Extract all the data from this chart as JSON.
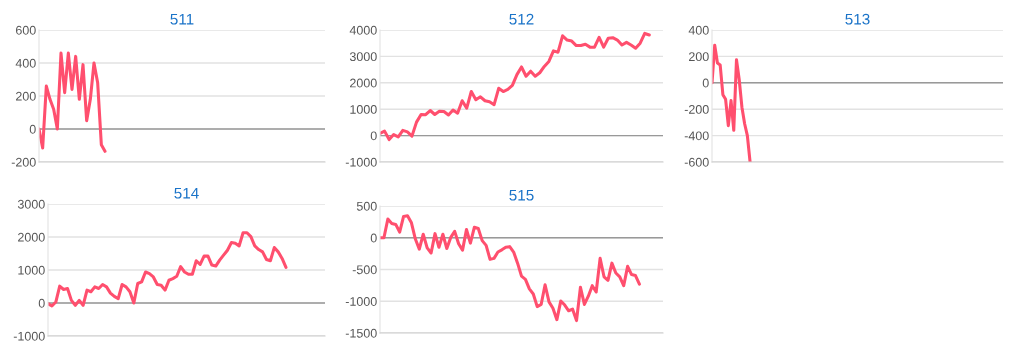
{
  "chart_data": [
    {
      "type": "line",
      "title": "511",
      "ylim": [
        -200,
        600
      ],
      "yticks": [
        -200,
        0,
        200,
        400,
        600
      ],
      "grid": "y",
      "tick_labels": "y",
      "ref_lines": [
        {
          "axis": "y",
          "value": 0,
          "color": "#999999"
        }
      ],
      "categories": [
        null,
        null,
        null,
        null,
        null,
        null,
        null,
        null,
        null,
        null,
        null,
        null,
        null,
        null,
        null,
        null,
        null,
        null,
        null,
        null,
        null,
        null,
        null,
        null,
        null,
        null,
        null,
        null,
        null,
        null,
        null,
        null,
        null,
        null,
        null,
        null,
        null,
        null,
        null,
        null,
        null,
        null,
        null,
        null,
        null,
        null,
        null,
        null,
        null,
        null,
        null,
        null,
        null,
        null,
        null,
        null,
        null,
        null,
        null,
        null,
        null,
        null,
        null,
        null,
        null,
        null,
        null,
        null,
        null,
        null,
        null,
        null,
        null,
        null,
        null,
        null,
        null,
        null,
        null
      ],
      "series": [
        {
          "color": "#ff4f6e",
          "values": [
            0,
            -115,
            260,
            180,
            120,
            0,
            460,
            220,
            460,
            240,
            440,
            180,
            390,
            50,
            180,
            400,
            280,
            -95,
            -135,
            null,
            null,
            null,
            null,
            null,
            null,
            null,
            null,
            null,
            null,
            null,
            null,
            null,
            null,
            null,
            null,
            null,
            null,
            null,
            null,
            null,
            null,
            null,
            null,
            null,
            null,
            null,
            null,
            null,
            null,
            null,
            null,
            null,
            null,
            null,
            null,
            null,
            null,
            null,
            null,
            null,
            null,
            null,
            null,
            null,
            null,
            null,
            null,
            null,
            null,
            null,
            null,
            null,
            null,
            null,
            null,
            null,
            null,
            null,
            null
          ]
        }
      ]
    },
    {
      "type": "line",
      "title": "512",
      "ylim": [
        -1000,
        4000
      ],
      "yticks": [
        -1000,
        0,
        1000,
        2000,
        3000,
        4000
      ],
      "grid": "y",
      "tick_labels": "y",
      "ref_lines": [
        {
          "axis": "y",
          "value": 0,
          "color": "#999999"
        }
      ],
      "categories": [
        null,
        null,
        null,
        null,
        null,
        null,
        null,
        null,
        null,
        null,
        null,
        null,
        null,
        null,
        null,
        null,
        null,
        null,
        null,
        null,
        null,
        null,
        null,
        null,
        null,
        null,
        null,
        null,
        null,
        null,
        null,
        null,
        null,
        null,
        null,
        null,
        null,
        null,
        null,
        null,
        null,
        null,
        null,
        null,
        null,
        null,
        null,
        null,
        null,
        null,
        null,
        null,
        null,
        null,
        null,
        null,
        null,
        null,
        null,
        null,
        null,
        null,
        null
      ],
      "series": [
        {
          "color": "#ff4f6e",
          "values": [
            80,
            170,
            -150,
            40,
            -50,
            200,
            140,
            -20,
            510,
            800,
            790,
            950,
            800,
            920,
            910,
            780,
            970,
            850,
            1320,
            1040,
            1670,
            1360,
            1470,
            1320,
            1280,
            1170,
            1790,
            1670,
            1750,
            1900,
            2310,
            2600,
            2250,
            2440,
            2250,
            2380,
            2620,
            2810,
            3210,
            3160,
            3780,
            3620,
            3580,
            3410,
            3410,
            3460,
            3350,
            3350,
            3720,
            3350,
            3690,
            3710,
            3620,
            3430,
            3530,
            3430,
            3310,
            3500,
            3870,
            3810,
            null,
            null,
            null
          ]
        }
      ]
    },
    {
      "type": "line",
      "title": "513",
      "ylim": [
        -600,
        400
      ],
      "yticks": [
        -600,
        -400,
        -200,
        0,
        200,
        400
      ],
      "grid": "y",
      "tick_labels": "y",
      "ref_lines": [
        {
          "axis": "y",
          "value": 0,
          "color": "#999999"
        }
      ],
      "categories": [
        null,
        null,
        null,
        null,
        null,
        null,
        null,
        null,
        null,
        null,
        null,
        null,
        null,
        null,
        null,
        null,
        null,
        null,
        null,
        null,
        null,
        null,
        null,
        null,
        null,
        null,
        null,
        null,
        null,
        null,
        null,
        null,
        null,
        null,
        null,
        null,
        null,
        null,
        null,
        null,
        null,
        null,
        null,
        null,
        null,
        null,
        null,
        null,
        null,
        null,
        null,
        null,
        null,
        null,
        null,
        null,
        null,
        null,
        null,
        null,
        null,
        null,
        null,
        null,
        null,
        null,
        null,
        null,
        null,
        null,
        null,
        null,
        null,
        null,
        null,
        null,
        null,
        null,
        null,
        null,
        null,
        null,
        null,
        null,
        null,
        null,
        null,
        null,
        null,
        null,
        null,
        null,
        null,
        null,
        null,
        null,
        null,
        null,
        null,
        null,
        null,
        null,
        null,
        null,
        null,
        null,
        null,
        null
      ],
      "series": [
        {
          "color": "#ff4f6e",
          "values": [
            0,
            285,
            150,
            135,
            -90,
            -125,
            -325,
            -135,
            -360,
            175,
            25,
            -185,
            -310,
            -400,
            -600,
            null,
            null,
            null,
            null,
            null,
            null,
            null,
            null,
            null,
            null,
            null,
            null,
            null,
            null,
            null,
            null,
            null,
            null,
            null,
            null,
            null,
            null,
            null,
            null,
            null,
            null,
            null,
            null,
            null,
            null,
            null,
            null,
            null,
            null,
            null,
            null,
            null,
            null,
            null,
            null,
            null,
            null,
            null,
            null,
            null,
            null,
            null,
            null,
            null,
            null,
            null,
            null,
            null,
            null,
            null,
            null,
            null,
            null,
            null,
            null,
            null,
            null,
            null,
            null,
            null,
            null,
            null,
            null,
            null,
            null,
            null,
            null,
            null,
            null,
            null,
            null,
            null,
            null,
            null,
            null,
            null,
            null,
            null,
            null,
            null,
            null,
            null,
            null,
            null,
            null,
            null,
            null,
            null
          ]
        }
      ]
    },
    {
      "type": "line",
      "title": "514",
      "ylim": [
        -1000,
        3000
      ],
      "yticks": [
        -1000,
        0,
        1000,
        2000,
        3000
      ],
      "grid": "y",
      "tick_labels": "y",
      "ref_lines": [
        {
          "axis": "y",
          "value": 0,
          "color": "#999999"
        }
      ],
      "categories": [
        null,
        null,
        null,
        null,
        null,
        null,
        null,
        null,
        null,
        null,
        null,
        null,
        null,
        null,
        null,
        null,
        null,
        null,
        null,
        null,
        null,
        null,
        null,
        null,
        null,
        null,
        null,
        null,
        null,
        null,
        null,
        null,
        null,
        null,
        null,
        null,
        null,
        null,
        null,
        null,
        null,
        null,
        null,
        null,
        null,
        null,
        null,
        null,
        null,
        null,
        null,
        null,
        null,
        null,
        null,
        null,
        null,
        null,
        null,
        null,
        null,
        null,
        null,
        null,
        null,
        null,
        null,
        null,
        null,
        null,
        null,
        null
      ],
      "series": [
        {
          "color": "#ff4f6e",
          "values": [
            -20,
            -90,
            30,
            510,
            410,
            440,
            80,
            -70,
            80,
            -70,
            390,
            340,
            490,
            440,
            560,
            490,
            300,
            200,
            130,
            560,
            490,
            340,
            0,
            590,
            640,
            940,
            890,
            790,
            560,
            540,
            390,
            690,
            740,
            810,
            1100,
            940,
            870,
            870,
            1280,
            1170,
            1420,
            1420,
            1150,
            1120,
            1300,
            1450,
            1600,
            1830,
            1810,
            1730,
            2130,
            2130,
            2010,
            1730,
            1620,
            1550,
            1320,
            1280,
            1680,
            1550,
            1350,
            1080,
            null,
            null,
            null,
            null,
            null,
            null,
            null,
            null,
            null,
            null
          ]
        }
      ]
    },
    {
      "type": "line",
      "title": "515",
      "ylim": [
        -1500,
        500
      ],
      "yticks": [
        -1500,
        -1000,
        -500,
        0,
        500
      ],
      "grid": "y",
      "tick_labels": "y",
      "ref_lines": [
        {
          "axis": "y",
          "value": 0,
          "color": "#999999"
        }
      ],
      "categories": [
        null,
        null,
        null,
        null,
        null,
        null,
        null,
        null,
        null,
        null,
        null,
        null,
        null,
        null,
        null,
        null,
        null,
        null,
        null,
        null,
        null,
        null,
        null,
        null,
        null,
        null,
        null,
        null,
        null,
        null,
        null,
        null,
        null,
        null,
        null,
        null,
        null,
        null,
        null,
        null,
        null,
        null,
        null,
        null,
        null,
        null,
        null,
        null,
        null,
        null,
        null,
        null,
        null,
        null,
        null,
        null,
        null,
        null,
        null,
        null,
        null,
        null,
        null,
        null,
        null,
        null,
        null,
        null,
        null,
        null,
        null,
        null,
        null
      ],
      "series": [
        {
          "color": "#ff4f6e",
          "values": [
            0,
            0,
            295,
            225,
            210,
            90,
            335,
            345,
            235,
            -20,
            -180,
            55,
            -160,
            -240,
            65,
            -150,
            55,
            -170,
            5,
            100,
            -95,
            -195,
            130,
            -85,
            165,
            145,
            -45,
            -120,
            -340,
            -325,
            -225,
            -190,
            -150,
            -140,
            -225,
            -400,
            -605,
            -655,
            -805,
            -885,
            -1085,
            -1050,
            -740,
            -1010,
            -1110,
            -1290,
            -995,
            -1060,
            -1150,
            -1125,
            -1305,
            -780,
            -1050,
            -920,
            -755,
            -855,
            -325,
            -615,
            -670,
            -400,
            -555,
            -615,
            -755,
            -450,
            -580,
            -595,
            -730,
            null,
            null,
            null,
            null,
            null,
            null
          ]
        }
      ]
    }
  ]
}
